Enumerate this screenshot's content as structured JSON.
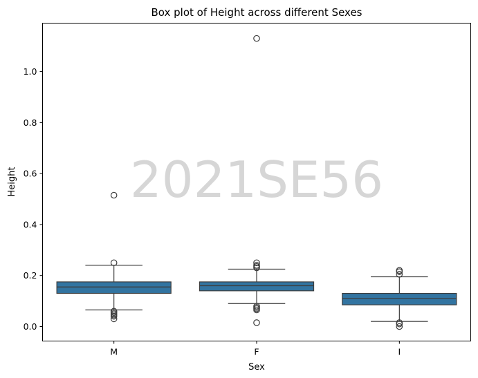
{
  "chart_data": {
    "type": "box",
    "title": "Box plot of Height across different Sexes",
    "xlabel": "Sex",
    "ylabel": "Height",
    "categories": [
      "M",
      "F",
      "I"
    ],
    "ylim": [
      -0.057,
      1.19
    ],
    "yticks": [
      0.0,
      0.2,
      0.4,
      0.6,
      0.8,
      1.0
    ],
    "ytick_labels": [
      "0.0",
      "0.2",
      "0.4",
      "0.6",
      "0.8",
      "1.0"
    ],
    "box_color": "#3274a1",
    "grid": false,
    "boxes": [
      {
        "category": "M",
        "whisker_low": 0.065,
        "q1": 0.13,
        "median": 0.155,
        "q3": 0.175,
        "whisker_high": 0.24,
        "outliers": [
          0.515,
          0.25,
          0.06,
          0.055,
          0.05,
          0.045,
          0.04,
          0.03
        ]
      },
      {
        "category": "F",
        "whisker_low": 0.09,
        "q1": 0.14,
        "median": 0.16,
        "q3": 0.175,
        "whisker_high": 0.225,
        "outliers": [
          1.13,
          0.25,
          0.24,
          0.235,
          0.23,
          0.08,
          0.075,
          0.07,
          0.065,
          0.015
        ]
      },
      {
        "category": "I",
        "whisker_low": 0.02,
        "q1": 0.085,
        "median": 0.11,
        "q3": 0.13,
        "whisker_high": 0.195,
        "outliers": [
          0.22,
          0.215,
          0.205,
          0.015,
          0.01,
          0.0
        ]
      }
    ]
  },
  "watermark": "2021SE56"
}
